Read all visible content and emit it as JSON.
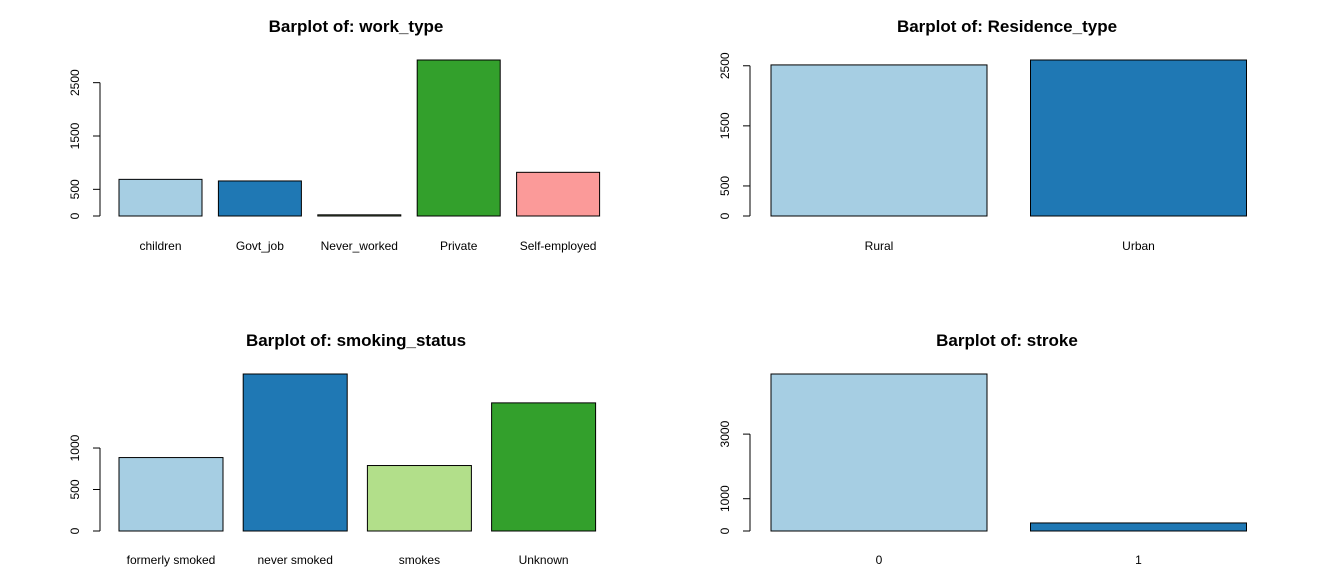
{
  "chart_data": [
    {
      "type": "bar",
      "title": "Barplot of: work_type",
      "categories": [
        "children",
        "Govt_job",
        "Never_worked",
        "Private",
        "Self-employed"
      ],
      "values": [
        687,
        657,
        22,
        2925,
        819
      ],
      "ylim": [
        0,
        2925
      ],
      "yticks": [
        0,
        500,
        1500,
        2500
      ],
      "colors": [
        "#a6cee3",
        "#1f78b4",
        "#b2df8a",
        "#33a02c",
        "#fb9a99"
      ]
    },
    {
      "type": "bar",
      "title": "Barplot of: Residence_type",
      "categories": [
        "Rural",
        "Urban"
      ],
      "values": [
        2514,
        2596
      ],
      "ylim": [
        0,
        2596
      ],
      "yticks": [
        0,
        500,
        1500,
        2500
      ],
      "colors": [
        "#a6cee3",
        "#1f78b4"
      ]
    },
    {
      "type": "bar",
      "title": "Barplot of: smoking_status",
      "categories": [
        "formerly smoked",
        "never smoked",
        "smokes",
        "Unknown"
      ],
      "values": [
        885,
        1892,
        789,
        1544
      ],
      "ylim": [
        0,
        1892
      ],
      "yticks": [
        0,
        500,
        1000
      ],
      "colors": [
        "#a6cee3",
        "#1f78b4",
        "#b2df8a",
        "#33a02c"
      ]
    },
    {
      "type": "bar",
      "title": "Barplot of: stroke",
      "categories": [
        "0",
        "1"
      ],
      "values": [
        4861,
        249
      ],
      "ylim": [
        0,
        4861
      ],
      "yticks": [
        0,
        1000,
        3000
      ],
      "colors": [
        "#a6cee3",
        "#1f78b4"
      ]
    }
  ]
}
